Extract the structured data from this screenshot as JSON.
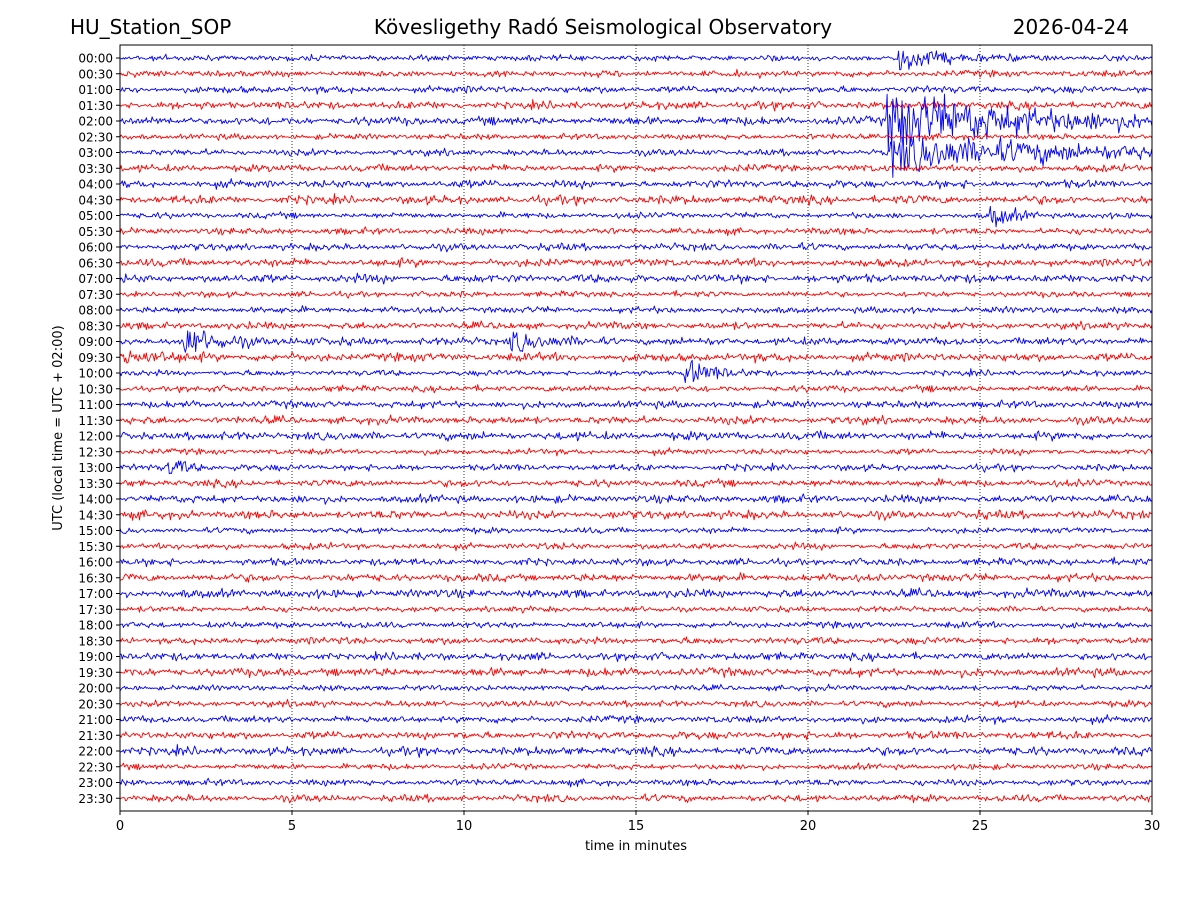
{
  "header": {
    "station": "HU_Station_SOP",
    "observatory": "Kövesligethy Radó Seismological Observatory",
    "date": "2026-04-24"
  },
  "chart_data": {
    "type": "line",
    "title": "Kövesligethy Radó Seismological Observatory",
    "subtitle_left": "HU_Station_SOP",
    "subtitle_right": "2026-04-24",
    "xlabel": "time in minutes",
    "ylabel": "UTC (local time = UTC + 02:00)",
    "xlim": [
      0,
      30
    ],
    "xticks": [
      0,
      5,
      10,
      15,
      20,
      25,
      30
    ],
    "grid": "vertical-dotted",
    "colors": [
      "#0000ff",
      "#ff0000"
    ],
    "rows": [
      "00:00",
      "00:30",
      "01:00",
      "01:30",
      "02:00",
      "02:30",
      "03:00",
      "03:30",
      "04:00",
      "04:30",
      "05:00",
      "05:30",
      "06:00",
      "06:30",
      "07:00",
      "07:30",
      "08:00",
      "08:30",
      "09:00",
      "09:30",
      "10:00",
      "10:30",
      "11:00",
      "11:30",
      "12:00",
      "12:30",
      "13:00",
      "13:30",
      "14:00",
      "14:30",
      "15:00",
      "15:30",
      "16:00",
      "16:30",
      "17:00",
      "17:30",
      "18:00",
      "18:30",
      "19:00",
      "19:30",
      "20:00",
      "20:30",
      "21:00",
      "21:30",
      "22:00",
      "22:30",
      "23:00",
      "23:30"
    ],
    "events": [
      {
        "row": "02:00",
        "start_min": 22.3,
        "peak_amp": 3.5,
        "decay_min": 3.5
      },
      {
        "row": "03:00",
        "start_min": 22.4,
        "peak_amp": 2.0,
        "decay_min": 5.0
      },
      {
        "row": "00:00",
        "start_min": 22.6,
        "peak_amp": 1.4,
        "decay_min": 1.2
      },
      {
        "row": "09:00",
        "start_min": 1.8,
        "peak_amp": 1.6,
        "decay_min": 1.0
      },
      {
        "row": "09:00",
        "start_min": 11.3,
        "peak_amp": 1.3,
        "decay_min": 0.8
      },
      {
        "row": "10:00",
        "start_min": 16.4,
        "peak_amp": 1.6,
        "decay_min": 0.7
      },
      {
        "row": "13:00",
        "start_min": 1.4,
        "peak_amp": 1.1,
        "decay_min": 0.5
      },
      {
        "row": "05:00",
        "start_min": 25.3,
        "peak_amp": 1.2,
        "decay_min": 0.6
      },
      {
        "row": "09:30",
        "start_min": 0.0,
        "peak_amp": 0.8,
        "decay_min": 1.0
      }
    ]
  }
}
